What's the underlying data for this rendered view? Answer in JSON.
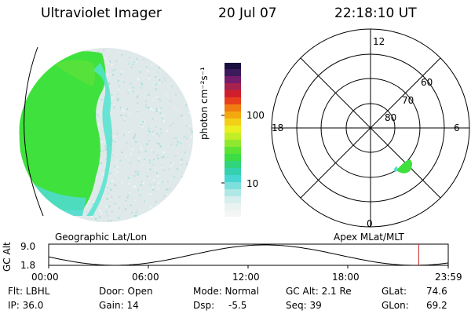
{
  "header": {
    "title": "Ultraviolet Imager",
    "date": "20 Jul 07",
    "time": "22:18:10 UT"
  },
  "colorbar": {
    "unit_label": "photon cm⁻²s⁻¹",
    "ticks": [
      "100",
      "10"
    ]
  },
  "polar_plot": {
    "mlt_labels": {
      "top": "12",
      "left": "18",
      "right": "6",
      "bottom": "0"
    },
    "lat_labels": [
      "60",
      "70",
      "80"
    ]
  },
  "strip": {
    "gc_alt_label": "GC Alt",
    "y_max": "9.0",
    "y_min": "1.8",
    "left_title": "Geographic Lat/Lon",
    "right_title": "Apex  MLat/MLT",
    "time_ticks": [
      "00:00",
      "06:00",
      "12:00",
      "18:00",
      "23:59"
    ],
    "marker_fraction": 0.926
  },
  "info": {
    "flt": "Flt: LBHL",
    "ip": "IP: 36.0",
    "door": "Door: Open",
    "gain": "Gain: 14",
    "mode": "Mode: Normal",
    "dsp_label": "Dsp:",
    "dsp_value": "-5.5",
    "gc_alt": "GC Alt: 2.1 Re",
    "seq": "Seq: 39",
    "glat_label": "GLat:",
    "glat_value": "74.6",
    "glon_label": "GLon:",
    "glon_value": "69.2"
  },
  "colors": {
    "auroral_green": "#3ee23a",
    "aqua": "#4fe0d0",
    "pale": "#d8e6e6",
    "marker": "#cc2222"
  }
}
